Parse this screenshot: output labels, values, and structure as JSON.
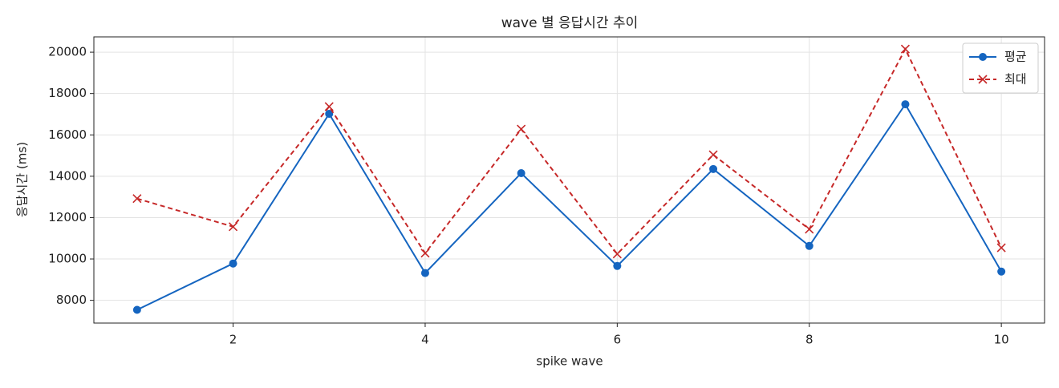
{
  "chart_data": {
    "type": "line",
    "title": "wave 별 응답시간 추이",
    "x_label": "spike wave",
    "y_label": "응답시간 (ms)",
    "x": [
      1,
      2,
      3,
      4,
      5,
      6,
      7,
      8,
      9,
      10
    ],
    "series": [
      {
        "name": "평균",
        "color": "#1565c0",
        "marker": "circle",
        "dash": "solid",
        "values": [
          7540,
          9780,
          17020,
          9320,
          14150,
          9660,
          14350,
          10630,
          17480,
          9390
        ]
      },
      {
        "name": "최대",
        "color": "#c62828",
        "marker": "x",
        "dash": "dashed",
        "values": [
          12920,
          11560,
          17370,
          10280,
          16280,
          10240,
          15040,
          11440,
          20150,
          10540
        ]
      }
    ],
    "xlim": [
      0.55,
      10.45
    ],
    "xticks": [
      2,
      4,
      6,
      8,
      10
    ],
    "ylim": [
      6900,
      20740
    ],
    "yticks": [
      8000,
      10000,
      12000,
      14000,
      16000,
      18000,
      20000
    ],
    "grid": true,
    "legend": "upper right"
  }
}
